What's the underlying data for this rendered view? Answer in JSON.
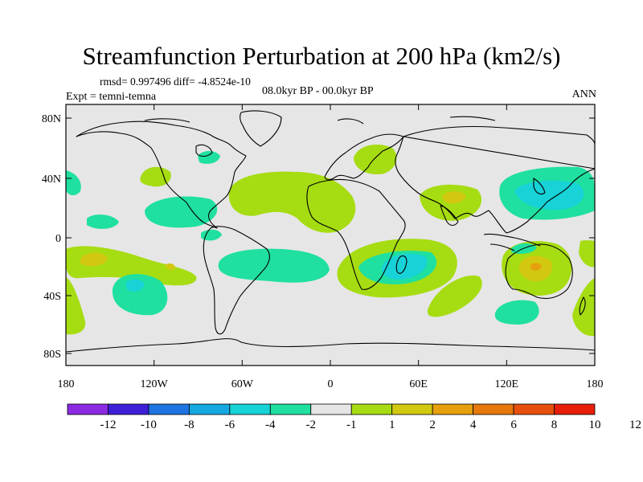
{
  "title": "Streamfunction Perturbation at 200 hPa (km2/s)",
  "stats": "rmsd= 0.997496 diff= -4.8524e-10",
  "experiment": "Expt = temni-temna",
  "period": "08.0kyr BP - 00.0kyr BP",
  "season": "ANN",
  "lat_labels": [
    "80N",
    "40N",
    "0",
    "40S",
    "80S"
  ],
  "lon_labels": [
    "180",
    "120W",
    "60W",
    "0",
    "60E",
    "120E",
    "180"
  ],
  "colorbar": {
    "labels": [
      "-12",
      "-10",
      "-8",
      "-6",
      "-4",
      "-2",
      "-1",
      "1",
      "2",
      "4",
      "6",
      "8",
      "10",
      "12"
    ],
    "colors": [
      "#8a2be2",
      "#3e1fd6",
      "#1e74e0",
      "#16a8e0",
      "#17d2d6",
      "#1fe0a0",
      "#e6e6e6",
      "#a6dc12",
      "#d2c810",
      "#e6a00e",
      "#e6780c",
      "#e6500c",
      "#e61e0a"
    ]
  },
  "anomaly_regions": [
    {
      "name": "north-pacific-positive",
      "level": "1 to 2",
      "color": "#a6dc12"
    },
    {
      "name": "north-atlantic-africa-positive",
      "level": "1 to 2",
      "color": "#a6dc12"
    },
    {
      "name": "europe-positive",
      "level": "1 to 2",
      "color": "#a6dc12"
    },
    {
      "name": "asia-positive",
      "level": "2 to 4",
      "color": "#d2c810"
    },
    {
      "name": "northwest-pacific-negative",
      "level": "-4 to -2",
      "color": "#17d2d6"
    },
    {
      "name": "east-pacific-negative",
      "level": "-2 to -1",
      "color": "#1fe0a0"
    },
    {
      "name": "south-pacific-positive",
      "level": "2 to 4",
      "color": "#d2c810"
    },
    {
      "name": "south-pacific-negative",
      "level": "-4 to -2",
      "color": "#17d2d6"
    },
    {
      "name": "south-atlantic-negative",
      "level": "-2 to -1",
      "color": "#1fe0a0"
    },
    {
      "name": "indian-ocean-negative",
      "level": "-4 to -2",
      "color": "#17d2d6"
    },
    {
      "name": "australia-positive",
      "level": "2 to 4",
      "color": "#d2c810"
    },
    {
      "name": "southern-ocean-negative",
      "level": "-2 to -1",
      "color": "#1fe0a0"
    }
  ]
}
